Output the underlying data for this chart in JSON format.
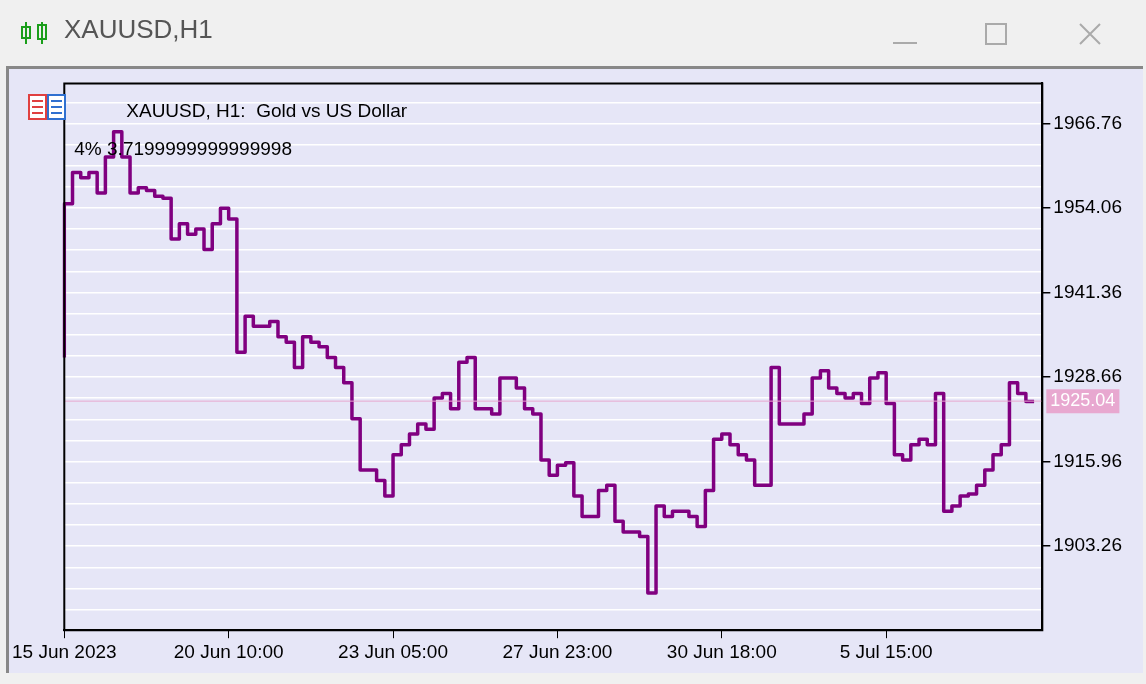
{
  "chart_data": {
    "type": "step",
    "title": "XAUUSD,H1",
    "subtitle": "XAUUSD, H1:  Gold vs US Dollar",
    "annotations": [
      "4% 3.7199999999999998"
    ],
    "categories": [
      "15 Jun 2023",
      null,
      null,
      null,
      null,
      null,
      null,
      null,
      null,
      null,
      null,
      null,
      null,
      null,
      null,
      null,
      null,
      null,
      null,
      null,
      "20 Jun 10:00",
      null,
      null,
      null,
      null,
      null,
      null,
      null,
      null,
      null,
      null,
      null,
      null,
      null,
      null,
      null,
      null,
      null,
      null,
      null,
      "23 Jun 05:00",
      null,
      null,
      null,
      null,
      null,
      null,
      null,
      null,
      null,
      null,
      null,
      null,
      null,
      null,
      null,
      null,
      null,
      null,
      null,
      "27 Jun 23:00",
      null,
      null,
      null,
      null,
      null,
      null,
      null,
      null,
      null,
      null,
      null,
      null,
      null,
      null,
      null,
      null,
      null,
      null,
      null,
      "30 Jun 18:00",
      null,
      null,
      null,
      null,
      null,
      null,
      null,
      null,
      null,
      null,
      null,
      null,
      null,
      null,
      null,
      null,
      null,
      null,
      null,
      "5 Jul 15:00",
      null,
      null,
      null,
      null,
      null,
      null,
      null,
      null,
      null,
      null,
      null,
      null,
      null,
      null,
      null,
      null,
      null,
      null,
      null
    ],
    "series": [
      {
        "color": "#800080",
        "values": [
          1931.6,
          1954.7,
          1959.4,
          1958.6,
          1959.4,
          1956.3,
          1961.7,
          1965.5,
          1961.7,
          1956.3,
          1957.1,
          1956.7,
          1955.8,
          1955.5,
          1949.4,
          1951.7,
          1950.1,
          1950.9,
          1947.8,
          1951.7,
          1954.0,
          1952.4,
          1932.4,
          1937.8,
          1936.3,
          1936.3,
          1937.0,
          1934.7,
          1933.9,
          1930.1,
          1934.7,
          1933.9,
          1933.2,
          1931.6,
          1930.1,
          1927.8,
          1922.4,
          1914.7,
          1914.7,
          1913.1,
          1910.8,
          1917.0,
          1918.5,
          1920.1,
          1921.6,
          1920.8,
          1925.5,
          1926.2,
          1923.9,
          1930.9,
          1931.6,
          1923.9,
          1923.9,
          1923.1,
          1928.5,
          1928.5,
          1927.0,
          1923.9,
          1923.1,
          1916.2,
          1913.9,
          1915.4,
          1915.8,
          1910.8,
          1907.7,
          1907.7,
          1911.6,
          1912.4,
          1907.0,
          1905.4,
          1905.4,
          1904.7,
          1896.2,
          1909.3,
          1907.7,
          1908.5,
          1908.5,
          1907.7,
          1906.2,
          1911.6,
          1919.3,
          1920.1,
          1918.5,
          1917.0,
          1916.2,
          1912.4,
          1912.4,
          1930.1,
          1921.6,
          1921.6,
          1921.6,
          1923.1,
          1928.5,
          1929.6,
          1927.0,
          1926.2,
          1925.5,
          1926.2,
          1924.7,
          1928.5,
          1929.3,
          1924.7,
          1917.0,
          1916.2,
          1918.5,
          1919.3,
          1918.5,
          1926.2,
          1908.5,
          1909.3,
          1910.8,
          1911.1,
          1912.4,
          1914.7,
          1917.0,
          1918.5,
          1927.8,
          1926.2,
          1925.0,
          null
        ]
      }
    ],
    "ylim": [
      1890.63,
      1972.77
    ],
    "yticks": [
      {
        "value": 1893.735,
        "label": null
      },
      {
        "value": 1896.91,
        "label": null
      },
      {
        "value": 1900.085,
        "label": null
      },
      1903.26,
      {
        "value": 1906.435,
        "label": null
      },
      {
        "value": 1909.61,
        "label": null
      },
      {
        "value": 1912.785,
        "label": null
      },
      1915.96,
      {
        "value": 1919.135,
        "label": null
      },
      {
        "value": 1922.31,
        "label": null
      },
      {
        "value": 1925.485,
        "label": null
      },
      1928.66,
      {
        "value": 1931.835,
        "label": null
      },
      {
        "value": 1935.01,
        "label": null
      },
      {
        "value": 1938.185,
        "label": null
      },
      1941.36,
      {
        "value": 1944.535,
        "label": null
      },
      {
        "value": 1947.71,
        "label": null
      },
      {
        "value": 1950.885,
        "label": null
      },
      1954.06,
      {
        "value": 1957.235,
        "label": null
      },
      {
        "value": 1960.41,
        "label": null
      },
      {
        "value": 1963.585,
        "label": null
      },
      1966.76,
      {
        "value": 1969.935,
        "label": null
      }
    ],
    "grid": "y",
    "ref_lines": [
      {
        "axis": "y",
        "value": 1925.04,
        "label": "1925.04",
        "color": "#e8a8d0"
      }
    ]
  }
}
